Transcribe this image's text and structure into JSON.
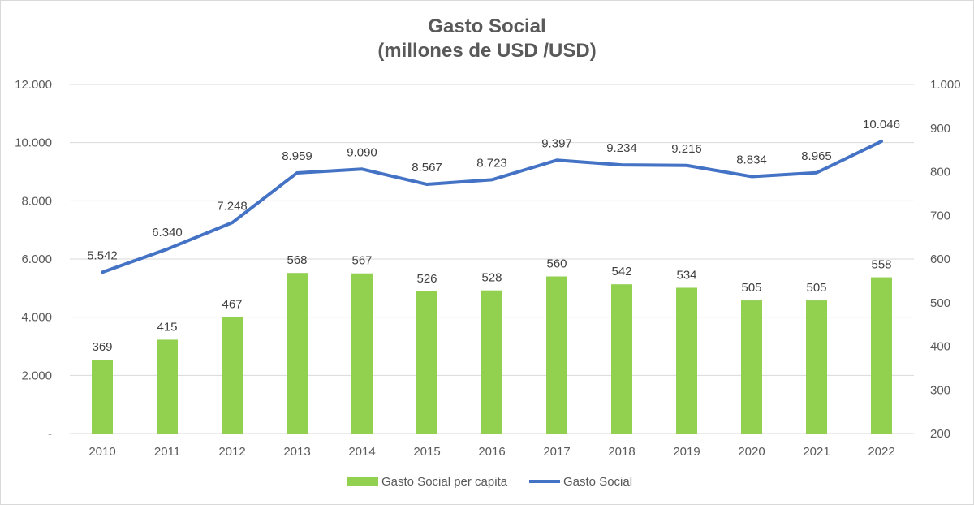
{
  "colors": {
    "bars": "#92d050",
    "line": "#4472c4",
    "grid": "#d9d9d9",
    "text": "#595959"
  },
  "chart_data": {
    "type": "bar+line",
    "title": "Gasto Social",
    "subtitle": "(millones de USD /USD)",
    "categories": [
      "2010",
      "2011",
      "2012",
      "2013",
      "2014",
      "2015",
      "2016",
      "2017",
      "2018",
      "2019",
      "2020",
      "2021",
      "2022"
    ],
    "left_axis": {
      "range": [
        0,
        12000
      ],
      "ticks": [
        "-",
        "2.000",
        "4.000",
        "6.000",
        "8.000",
        "10.000",
        "12.000"
      ]
    },
    "right_axis": {
      "range": [
        200,
        1000
      ],
      "ticks": [
        "200",
        "300",
        "400",
        "500",
        "600",
        "700",
        "800",
        "900",
        "1.000"
      ]
    },
    "grid": true,
    "legend_position": "bottom",
    "series": [
      {
        "name": "Gasto Social per capita",
        "kind": "bar",
        "axis": "right",
        "values": [
          369,
          415,
          467,
          568,
          567,
          526,
          528,
          560,
          542,
          534,
          505,
          505,
          558
        ],
        "labels": [
          "369",
          "415",
          "467",
          "568",
          "567",
          "526",
          "528",
          "560",
          "542",
          "534",
          "505",
          "505",
          "558"
        ]
      },
      {
        "name": "Gasto Social",
        "kind": "line",
        "axis": "left",
        "values": [
          5542,
          6340,
          7248,
          8959,
          9090,
          8567,
          8723,
          9397,
          9234,
          9216,
          8834,
          8965,
          10046
        ],
        "labels": [
          "5.542",
          "6.340",
          "7.248",
          "8.959",
          "9.090",
          "8.567",
          "8.723",
          "9.397",
          "9.234",
          "9.216",
          "8.834",
          "8.965",
          "10.046"
        ]
      }
    ]
  }
}
